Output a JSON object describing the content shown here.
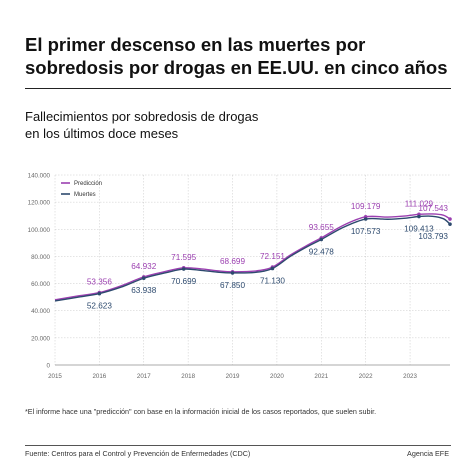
{
  "header": {
    "title": "El primer descenso en las muertes por sobredosis por drogas en EE.UU. en cinco años",
    "subtitle_line1": "Fallecimientos por sobredosis de drogas",
    "subtitle_line2": "en los últimos doce meses"
  },
  "footer": {
    "note": "*El informe hace una \"predicción\" con base en la información inicial de los casos reportados, que suelen subir.",
    "source": "Fuente: Centros para el Control y Prevención de Enfermedades (CDC)",
    "credit": "Agencia EFE"
  },
  "colors": {
    "prediction": "#9b3fb0",
    "deaths": "#2d4a6e",
    "grid": "#c8c8c8",
    "axis_text": "#666666"
  },
  "chart_data": {
    "type": "line",
    "title": "Fallecimientos por sobredosis de drogas en los últimos doce meses",
    "xlabel": "",
    "ylabel": "",
    "xlim": [
      2015,
      2023.9
    ],
    "ylim": [
      0,
      140000
    ],
    "grid": true,
    "legend_position": "top-left",
    "x_ticks": [
      "2015",
      "2016",
      "2017",
      "2018",
      "2019",
      "2020",
      "2021",
      "2022",
      "2023"
    ],
    "y_ticks": [
      "0",
      "20.000",
      "40.000",
      "60.000",
      "80.000",
      "100.000",
      "120.000",
      "140.000"
    ],
    "series": [
      {
        "name": "Predicción",
        "points": [
          [
            2015.0,
            48000
          ],
          [
            2015.5,
            50800
          ],
          [
            2016.0,
            53356
          ],
          [
            2016.5,
            58500
          ],
          [
            2017.0,
            64932
          ],
          [
            2017.5,
            69000
          ],
          [
            2017.9,
            71595
          ],
          [
            2018.3,
            70800
          ],
          [
            2018.7,
            69300
          ],
          [
            2019.0,
            68699
          ],
          [
            2019.5,
            69200
          ],
          [
            2019.9,
            72151
          ],
          [
            2020.3,
            81000
          ],
          [
            2020.7,
            88500
          ],
          [
            2021.0,
            93655
          ],
          [
            2021.5,
            103000
          ],
          [
            2022.0,
            109179
          ],
          [
            2022.5,
            109000
          ],
          [
            2022.9,
            109800
          ],
          [
            2023.2,
            111029
          ],
          [
            2023.5,
            111300
          ],
          [
            2023.75,
            110400
          ],
          [
            2023.9,
            107543
          ]
        ]
      },
      {
        "name": "Muertes",
        "points": [
          [
            2015.0,
            47200
          ],
          [
            2015.5,
            49900
          ],
          [
            2016.0,
            52623
          ],
          [
            2016.5,
            57500
          ],
          [
            2017.0,
            63938
          ],
          [
            2017.5,
            68000
          ],
          [
            2017.9,
            70699
          ],
          [
            2018.3,
            69700
          ],
          [
            2018.7,
            68300
          ],
          [
            2019.0,
            67850
          ],
          [
            2019.5,
            68200
          ],
          [
            2019.9,
            71130
          ],
          [
            2020.3,
            80000
          ],
          [
            2020.7,
            87500
          ],
          [
            2021.0,
            92478
          ],
          [
            2021.5,
            101500
          ],
          [
            2022.0,
            107573
          ],
          [
            2022.5,
            107400
          ],
          [
            2022.9,
            108200
          ],
          [
            2023.2,
            109413
          ],
          [
            2023.5,
            109600
          ],
          [
            2023.75,
            107800
          ],
          [
            2023.9,
            103793
          ]
        ]
      }
    ],
    "annotations": {
      "prediction": [
        {
          "x": 2016.0,
          "y": 53356,
          "label": "53.356"
        },
        {
          "x": 2017.0,
          "y": 64932,
          "label": "64.932"
        },
        {
          "x": 2017.9,
          "y": 71595,
          "label": "71.595"
        },
        {
          "x": 2019.0,
          "y": 68699,
          "label": "68.699"
        },
        {
          "x": 2019.9,
          "y": 72151,
          "label": "72.151"
        },
        {
          "x": 2021.0,
          "y": 93655,
          "label": "93.655"
        },
        {
          "x": 2022.0,
          "y": 109179,
          "label": "109.179"
        },
        {
          "x": 2023.2,
          "y": 111029,
          "label": "111.029"
        },
        {
          "x": 2023.9,
          "y": 107543,
          "label": "107.543"
        }
      ],
      "deaths": [
        {
          "x": 2016.0,
          "y": 52623,
          "label": "52.623"
        },
        {
          "x": 2017.0,
          "y": 63938,
          "label": "63.938"
        },
        {
          "x": 2017.9,
          "y": 70699,
          "label": "70.699"
        },
        {
          "x": 2019.0,
          "y": 67850,
          "label": "67.850"
        },
        {
          "x": 2019.9,
          "y": 71130,
          "label": "71.130"
        },
        {
          "x": 2021.0,
          "y": 92478,
          "label": "92.478"
        },
        {
          "x": 2022.0,
          "y": 107573,
          "label": "107.573"
        },
        {
          "x": 2023.2,
          "y": 109413,
          "label": "109.413"
        },
        {
          "x": 2023.9,
          "y": 103793,
          "label": "103.793"
        }
      ]
    }
  }
}
